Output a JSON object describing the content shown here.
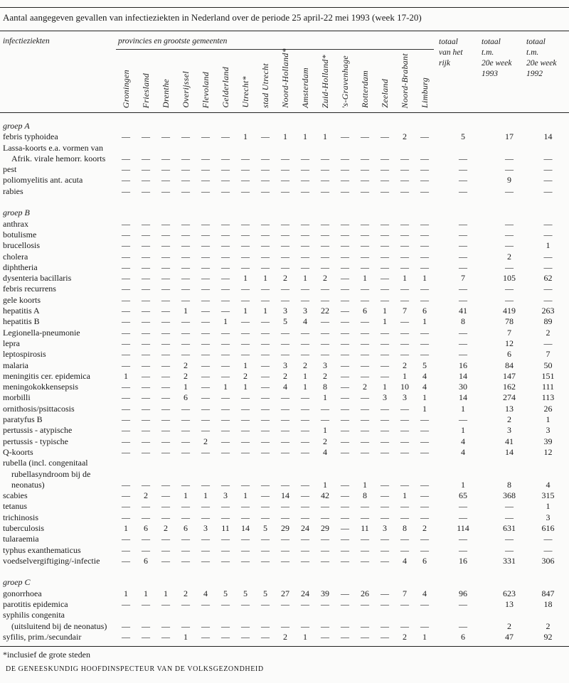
{
  "title": "Aantal aangegeven gevallen van infectieziekten in Nederland over de periode 25 april-22 mei 1993 (week 17-20)",
  "header": {
    "disease_col": "infectieziekten",
    "provinces_label": "provincies en grootste gemeenten",
    "provinces": [
      "Groningen",
      "Friesland",
      "Drenthe",
      "Overijssel",
      "Flevoland",
      "Gelderland",
      "Utrecht*",
      "stad Utrecht",
      "Noord-Holland*",
      "Amsterdam",
      "Zuid-Holland*",
      "'s-Gravenhage",
      "Rotterdam",
      "Zeeland",
      "Noord-Brabant",
      "Limburg"
    ],
    "totals": [
      [
        "totaal",
        "van het",
        "rijk"
      ],
      [
        "totaal",
        "t.m.",
        "20e week",
        "1993"
      ],
      [
        "totaal",
        "t.m.",
        "20e week",
        "1992"
      ]
    ]
  },
  "groups": [
    {
      "name": "groep A",
      "rows": [
        {
          "label": [
            "febris typhoidea"
          ],
          "values": [
            "—",
            "—",
            "—",
            "—",
            "—",
            "—",
            "1",
            "—",
            "1",
            "1",
            "1",
            "—",
            "—",
            "—",
            "2",
            "—",
            "5",
            "17",
            "14"
          ]
        },
        {
          "label": [
            "Lassa-koorts e.a. vormen van",
            "Afrik. virale hemorr. koorts"
          ],
          "values": [
            "—",
            "—",
            "—",
            "—",
            "—",
            "—",
            "—",
            "—",
            "—",
            "—",
            "—",
            "—",
            "—",
            "—",
            "—",
            "—",
            "—",
            "—",
            "—"
          ]
        },
        {
          "label": [
            "pest"
          ],
          "values": [
            "—",
            "—",
            "—",
            "—",
            "—",
            "—",
            "—",
            "—",
            "—",
            "—",
            "—",
            "—",
            "—",
            "—",
            "—",
            "—",
            "—",
            "—",
            "—"
          ]
        },
        {
          "label": [
            "poliomyelitis ant. acuta"
          ],
          "values": [
            "—",
            "—",
            "—",
            "—",
            "—",
            "—",
            "—",
            "—",
            "—",
            "—",
            "—",
            "—",
            "—",
            "—",
            "—",
            "—",
            "—",
            "9",
            "—"
          ]
        },
        {
          "label": [
            "rabies"
          ],
          "values": [
            "—",
            "—",
            "—",
            "—",
            "—",
            "—",
            "—",
            "—",
            "—",
            "—",
            "—",
            "—",
            "—",
            "—",
            "—",
            "—",
            "—",
            "—",
            "—"
          ]
        }
      ]
    },
    {
      "name": "groep B",
      "rows": [
        {
          "label": [
            "anthrax"
          ],
          "values": [
            "—",
            "—",
            "—",
            "—",
            "—",
            "—",
            "—",
            "—",
            "—",
            "—",
            "—",
            "—",
            "—",
            "—",
            "—",
            "—",
            "—",
            "—",
            "—"
          ]
        },
        {
          "label": [
            "botulisme"
          ],
          "values": [
            "—",
            "—",
            "—",
            "—",
            "—",
            "—",
            "—",
            "—",
            "—",
            "—",
            "—",
            "—",
            "—",
            "—",
            "—",
            "—",
            "—",
            "—",
            "—"
          ]
        },
        {
          "label": [
            "brucellosis"
          ],
          "values": [
            "—",
            "—",
            "—",
            "—",
            "—",
            "—",
            "—",
            "—",
            "—",
            "—",
            "—",
            "—",
            "—",
            "—",
            "—",
            "—",
            "—",
            "—",
            "1"
          ]
        },
        {
          "label": [
            "cholera"
          ],
          "values": [
            "—",
            "—",
            "—",
            "—",
            "—",
            "—",
            "—",
            "—",
            "—",
            "—",
            "—",
            "—",
            "—",
            "—",
            "—",
            "—",
            "—",
            "2",
            "—"
          ]
        },
        {
          "label": [
            "diphtheria"
          ],
          "values": [
            "—",
            "—",
            "—",
            "—",
            "—",
            "—",
            "—",
            "—",
            "—",
            "—",
            "—",
            "—",
            "—",
            "—",
            "—",
            "—",
            "—",
            "—",
            "—"
          ]
        },
        {
          "label": [
            "dysenteria bacillaris"
          ],
          "values": [
            "—",
            "—",
            "—",
            "—",
            "—",
            "—",
            "1",
            "1",
            "2",
            "1",
            "2",
            "—",
            "1",
            "—",
            "1",
            "1",
            "7",
            "105",
            "62"
          ]
        },
        {
          "label": [
            "febris recurrens"
          ],
          "values": [
            "—",
            "—",
            "—",
            "—",
            "—",
            "—",
            "—",
            "—",
            "—",
            "—",
            "—",
            "—",
            "—",
            "—",
            "—",
            "—",
            "—",
            "—",
            "—"
          ]
        },
        {
          "label": [
            "gele koorts"
          ],
          "values": [
            "—",
            "—",
            "—",
            "—",
            "—",
            "—",
            "—",
            "—",
            "—",
            "—",
            "—",
            "—",
            "—",
            "—",
            "—",
            "—",
            "—",
            "—",
            "—"
          ]
        },
        {
          "label": [
            "hepatitis A"
          ],
          "values": [
            "—",
            "—",
            "—",
            "1",
            "—",
            "—",
            "1",
            "1",
            "3",
            "3",
            "22",
            "—",
            "6",
            "1",
            "7",
            "6",
            "41",
            "419",
            "263"
          ]
        },
        {
          "label": [
            "hepatitis B"
          ],
          "values": [
            "—",
            "—",
            "—",
            "—",
            "—",
            "1",
            "—",
            "—",
            "5",
            "4",
            "—",
            "—",
            "—",
            "1",
            "—",
            "1",
            "8",
            "78",
            "89"
          ]
        },
        {
          "label": [
            "Legionella-pneumonie"
          ],
          "values": [
            "—",
            "—",
            "—",
            "—",
            "—",
            "—",
            "—",
            "—",
            "—",
            "—",
            "—",
            "—",
            "—",
            "—",
            "—",
            "—",
            "—",
            "7",
            "2"
          ]
        },
        {
          "label": [
            "lepra"
          ],
          "values": [
            "—",
            "—",
            "—",
            "—",
            "—",
            "—",
            "—",
            "—",
            "—",
            "—",
            "—",
            "—",
            "—",
            "—",
            "—",
            "—",
            "—",
            "12",
            "—"
          ]
        },
        {
          "label": [
            "leptospirosis"
          ],
          "values": [
            "—",
            "—",
            "—",
            "—",
            "—",
            "—",
            "—",
            "—",
            "—",
            "—",
            "—",
            "—",
            "—",
            "—",
            "—",
            "—",
            "—",
            "6",
            "7"
          ]
        },
        {
          "label": [
            "malaria"
          ],
          "values": [
            "—",
            "—",
            "—",
            "2",
            "—",
            "—",
            "1",
            "—",
            "3",
            "2",
            "3",
            "—",
            "—",
            "—",
            "2",
            "5",
            "16",
            "84",
            "50"
          ]
        },
        {
          "label": [
            "meningitis cer. epidemica"
          ],
          "values": [
            "1",
            "—",
            "—",
            "2",
            "—",
            "—",
            "2",
            "—",
            "2",
            "1",
            "2",
            "—",
            "—",
            "—",
            "1",
            "4",
            "14",
            "147",
            "151"
          ]
        },
        {
          "label": [
            "meningokokkensepsis"
          ],
          "values": [
            "—",
            "—",
            "—",
            "1",
            "—",
            "1",
            "1",
            "—",
            "4",
            "1",
            "8",
            "—",
            "2",
            "1",
            "10",
            "4",
            "30",
            "162",
            "111"
          ]
        },
        {
          "label": [
            "morbilli"
          ],
          "values": [
            "—",
            "—",
            "—",
            "6",
            "—",
            "—",
            "—",
            "—",
            "—",
            "—",
            "1",
            "—",
            "—",
            "3",
            "3",
            "1",
            "14",
            "274",
            "113"
          ]
        },
        {
          "label": [
            "ornithosis/psittacosis"
          ],
          "values": [
            "—",
            "—",
            "—",
            "—",
            "—",
            "—",
            "—",
            "—",
            "—",
            "—",
            "—",
            "—",
            "—",
            "—",
            "—",
            "1",
            "1",
            "13",
            "26"
          ]
        },
        {
          "label": [
            "paratyfus B"
          ],
          "values": [
            "—",
            "—",
            "—",
            "—",
            "—",
            "—",
            "—",
            "—",
            "—",
            "—",
            "—",
            "—",
            "—",
            "—",
            "—",
            "—",
            "—",
            "2",
            "1"
          ]
        },
        {
          "label": [
            "pertussis - atypische"
          ],
          "values": [
            "—",
            "—",
            "—",
            "—",
            "—",
            "—",
            "—",
            "—",
            "—",
            "—",
            "1",
            "—",
            "—",
            "—",
            "—",
            "—",
            "1",
            "3",
            "3"
          ]
        },
        {
          "label": [
            "pertussis - typische"
          ],
          "values": [
            "—",
            "—",
            "—",
            "—",
            "2",
            "—",
            "—",
            "—",
            "—",
            "—",
            "2",
            "—",
            "—",
            "—",
            "—",
            "—",
            "4",
            "41",
            "39"
          ]
        },
        {
          "label": [
            "Q-koorts"
          ],
          "values": [
            "—",
            "—",
            "—",
            "—",
            "—",
            "—",
            "—",
            "—",
            "—",
            "—",
            "4",
            "—",
            "—",
            "—",
            "—",
            "—",
            "4",
            "14",
            "12"
          ]
        },
        {
          "label": [
            "rubella (incl. congenitaal",
            "rubellasyndroom bij de",
            "neonatus)"
          ],
          "values": [
            "—",
            "—",
            "—",
            "—",
            "—",
            "—",
            "—",
            "—",
            "—",
            "—",
            "1",
            "—",
            "1",
            "—",
            "—",
            "—",
            "1",
            "8",
            "4"
          ]
        },
        {
          "label": [
            "scabies"
          ],
          "values": [
            "—",
            "2",
            "—",
            "1",
            "1",
            "3",
            "1",
            "—",
            "14",
            "—",
            "42",
            "—",
            "8",
            "—",
            "1",
            "—",
            "65",
            "368",
            "315"
          ]
        },
        {
          "label": [
            "tetanus"
          ],
          "values": [
            "—",
            "—",
            "—",
            "—",
            "—",
            "—",
            "—",
            "—",
            "—",
            "—",
            "—",
            "—",
            "—",
            "—",
            "—",
            "—",
            "—",
            "—",
            "1"
          ]
        },
        {
          "label": [
            "trichinosis"
          ],
          "values": [
            "—",
            "—",
            "—",
            "—",
            "—",
            "—",
            "—",
            "—",
            "—",
            "—",
            "—",
            "—",
            "—",
            "—",
            "—",
            "—",
            "—",
            "—",
            "3"
          ]
        },
        {
          "label": [
            "tuberculosis"
          ],
          "values": [
            "1",
            "6",
            "2",
            "6",
            "3",
            "11",
            "14",
            "5",
            "29",
            "24",
            "29",
            "—",
            "11",
            "3",
            "8",
            "2",
            "114",
            "631",
            "616"
          ]
        },
        {
          "label": [
            "tularaemia"
          ],
          "values": [
            "—",
            "—",
            "—",
            "—",
            "—",
            "—",
            "—",
            "—",
            "—",
            "—",
            "—",
            "—",
            "—",
            "—",
            "—",
            "—",
            "—",
            "—",
            "—"
          ]
        },
        {
          "label": [
            "typhus exanthematicus"
          ],
          "values": [
            "—",
            "—",
            "—",
            "—",
            "—",
            "—",
            "—",
            "—",
            "—",
            "—",
            "—",
            "—",
            "—",
            "—",
            "—",
            "—",
            "—",
            "—",
            "—"
          ]
        },
        {
          "label": [
            "voedselvergiftiging/-infectie"
          ],
          "values": [
            "—",
            "6",
            "—",
            "—",
            "—",
            "—",
            "—",
            "—",
            "—",
            "—",
            "—",
            "—",
            "—",
            "—",
            "4",
            "6",
            "16",
            "331",
            "306"
          ]
        }
      ]
    },
    {
      "name": "groep C",
      "rows": [
        {
          "label": [
            "gonorrhoea"
          ],
          "values": [
            "1",
            "1",
            "1",
            "2",
            "4",
            "5",
            "5",
            "5",
            "27",
            "24",
            "39",
            "—",
            "26",
            "—",
            "7",
            "4",
            "96",
            "623",
            "847"
          ]
        },
        {
          "label": [
            "parotitis epidemica"
          ],
          "values": [
            "—",
            "—",
            "—",
            "—",
            "—",
            "—",
            "—",
            "—",
            "—",
            "—",
            "—",
            "—",
            "—",
            "—",
            "—",
            "—",
            "—",
            "13",
            "18"
          ]
        },
        {
          "label": [
            "syphilis congenita",
            "(uitsluitend bij de neonatus)"
          ],
          "values": [
            "—",
            "—",
            "—",
            "—",
            "—",
            "—",
            "—",
            "—",
            "—",
            "—",
            "—",
            "—",
            "—",
            "—",
            "—",
            "—",
            "—",
            "2",
            "2"
          ]
        },
        {
          "label": [
            "syfilis, prim./secundair"
          ],
          "values": [
            "—",
            "—",
            "—",
            "1",
            "—",
            "—",
            "—",
            "—",
            "2",
            "1",
            "—",
            "—",
            "—",
            "—",
            "2",
            "1",
            "6",
            "47",
            "92"
          ]
        }
      ]
    }
  ],
  "footnote": "*inclusief de grote steden",
  "signature": "DE GENEESKUNDIG HOOFDINSPECTEUR VAN DE VOLKSGEZONDHEID"
}
